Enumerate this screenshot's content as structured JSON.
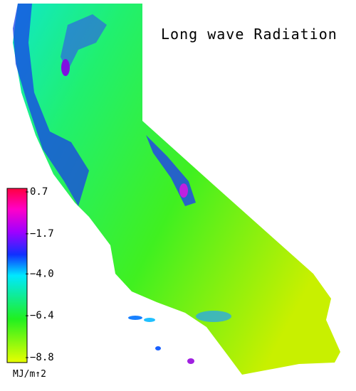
{
  "title": "Long wave Radiation",
  "colorbar": {
    "ticks": [
      {
        "value": 0.7,
        "label": "0.7"
      },
      {
        "value": -1.7,
        "label": "−1.7"
      },
      {
        "value": -4.0,
        "label": "−4.0"
      },
      {
        "value": -6.4,
        "label": "−6.4"
      },
      {
        "value": -8.8,
        "label": "−8.8"
      }
    ],
    "unit": "MJ/m↑2"
  }
}
